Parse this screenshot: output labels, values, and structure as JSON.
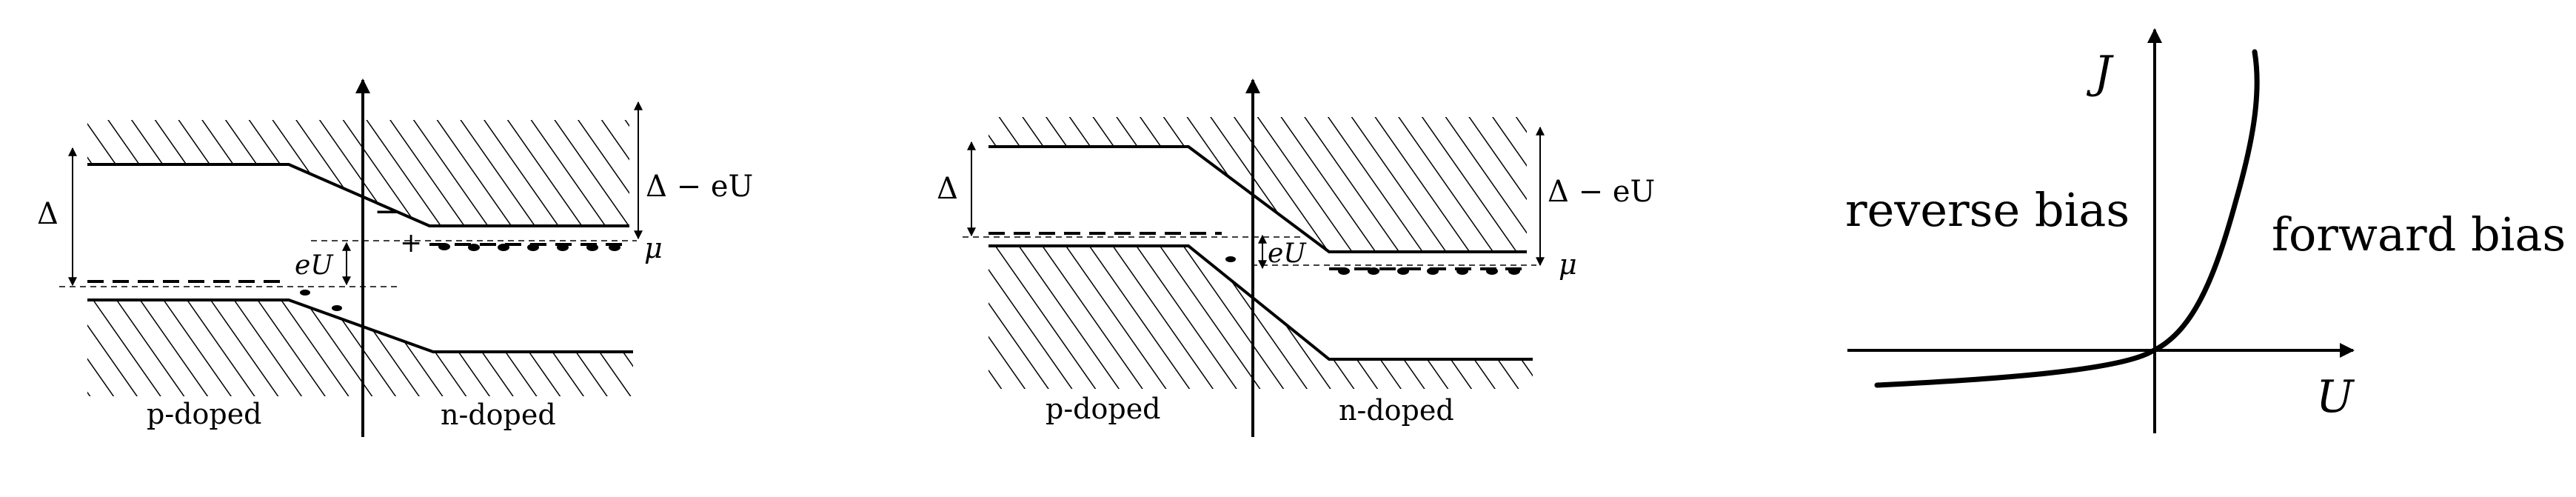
{
  "panels": [
    {
      "id": "forward-bias-band-diagram",
      "labels": {
        "gap": "Δ",
        "gap_minus_eu": "Δ − eU",
        "eu": "eU",
        "mu": "μ",
        "p_region": "p-doped",
        "n_region": "n-doped",
        "hole_charge": "+",
        "electron_charge": "−"
      }
    },
    {
      "id": "reverse-bias-band-diagram",
      "labels": {
        "gap": "Δ",
        "gap_minus_eu": "Δ − eU",
        "eu": "eU",
        "mu": "μ",
        "p_region": "p-doped",
        "n_region": "n-doped"
      }
    },
    {
      "id": "iv-curve",
      "labels": {
        "y_axis": "J",
        "x_axis": "U",
        "left_region": "reverse bias",
        "right_region": "forward bias"
      }
    }
  ],
  "colors": {
    "ink": "#000000",
    "background": "#ffffff"
  }
}
